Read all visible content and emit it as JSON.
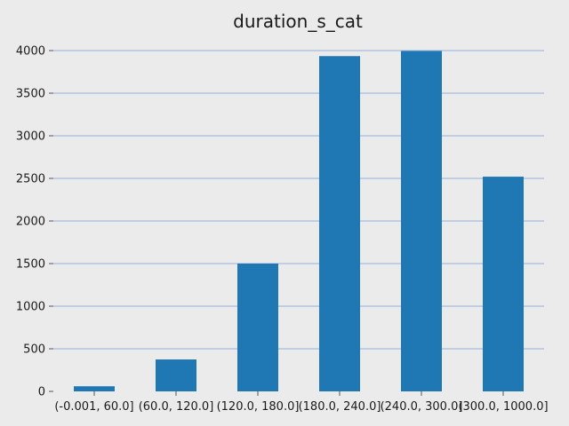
{
  "chart_data": {
    "type": "bar",
    "title": "duration_s_cat",
    "xlabel": "",
    "ylabel": "",
    "categories": [
      "(-0.001, 60.0]",
      "(60.0, 120.0]",
      "(120.0, 180.0]",
      "(180.0, 240.0]",
      "(240.0, 300.0]",
      "(300.0, 1000.0]"
    ],
    "values": [
      60,
      375,
      1500,
      3935,
      3995,
      2520
    ],
    "ylim": [
      0,
      4100
    ],
    "yticks": [
      0,
      500,
      1000,
      1500,
      2000,
      2500,
      3000,
      3500,
      4000
    ],
    "grid": "y",
    "legend": "none",
    "bar_color": "#1f77b4",
    "grid_color": "#7a9bd6",
    "background_color": "#ebebeb"
  }
}
